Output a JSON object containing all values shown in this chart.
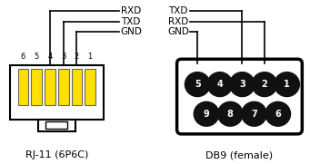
{
  "bg_color": "#ffffff",
  "line_color": "#000000",
  "rj11_label": "RJ-11 (6P6C)",
  "db9_label": "DB9 (female)",
  "yellow_color": "#FFE000",
  "pin_circle_color": "#111111",
  "pin_text_color": "#ffffff",
  "rj11_pins": [
    "6",
    "5",
    "4",
    "3",
    "2",
    "1"
  ],
  "rj11_wire_labels_left": [
    "RXD",
    "TXD",
    "GND"
  ],
  "db9_wire_labels_right": [
    "TXD",
    "RXD",
    "GND"
  ],
  "db9_top_pin_nums": [
    "5",
    "4",
    "3",
    "2",
    "1"
  ],
  "db9_bot_pin_nums": [
    "9",
    "8",
    "7",
    "6"
  ]
}
